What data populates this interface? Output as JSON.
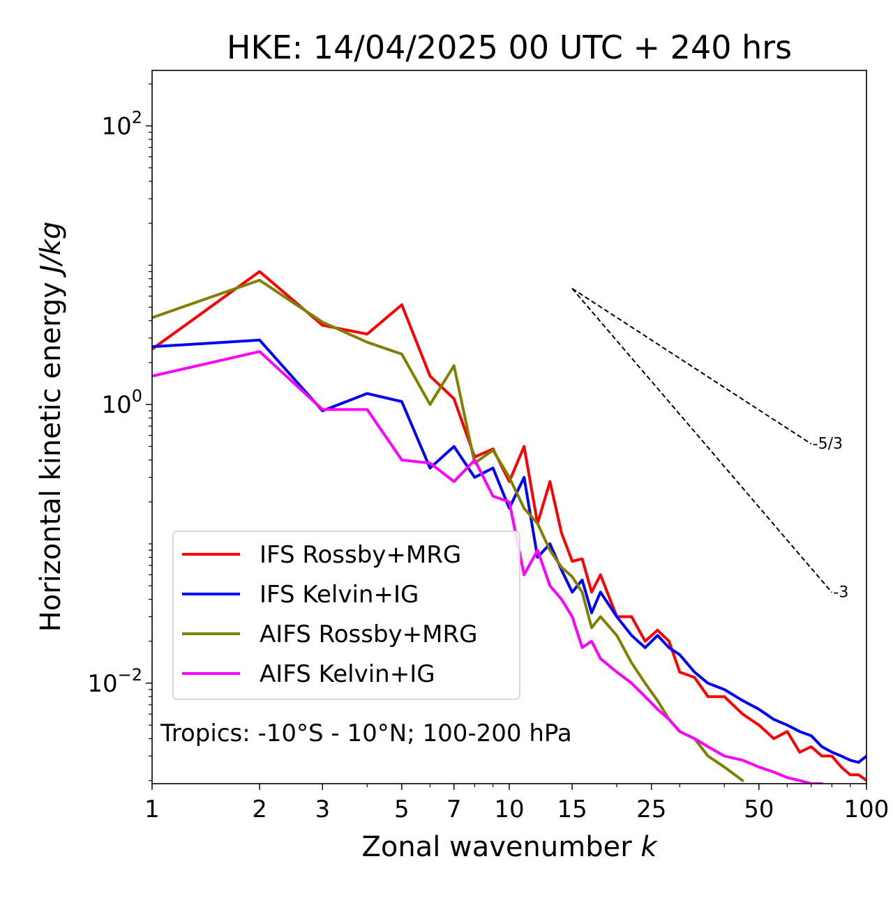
{
  "chart_data": {
    "type": "line",
    "title": "HKE: 14/04/2025 00 UTC + 240 hrs",
    "xlabel": "Zonal wavenumber k",
    "ylabel": "Horizontal kinetic energy J/kg",
    "xscale": "log",
    "yscale": "log",
    "xlim": [
      1,
      100
    ],
    "ylim": [
      0.0019,
      250
    ],
    "x_ticks": [
      1,
      2,
      3,
      5,
      7,
      10,
      15,
      25,
      50,
      100
    ],
    "x_tick_labels": [
      "1",
      "2",
      "3",
      "5",
      "7",
      "10",
      "15",
      "25",
      "50",
      "100"
    ],
    "y_ticks": [
      0.01,
      1,
      100
    ],
    "y_tick_labels": [
      {
        "base": "10",
        "exp": "−2"
      },
      {
        "base": "10",
        "exp": "0"
      },
      {
        "base": "10",
        "exp": "2"
      }
    ],
    "legend_position": "lower-left",
    "annotation": "Tropics: -10°S - 10°N; 100-200 hPa",
    "reference_lines": [
      {
        "label": "-5/3",
        "slope": -1.6667,
        "x": [
          15,
          70
        ],
        "y0": 6.8
      },
      {
        "label": "-3",
        "slope": -3,
        "x": [
          15,
          80
        ],
        "y0": 6.8
      }
    ],
    "series": [
      {
        "name": "IFS Rossby+MRG",
        "color": "#ff0000",
        "x": [
          1,
          2,
          3,
          4,
          5,
          6,
          7,
          8,
          9,
          10,
          11,
          12,
          13,
          14,
          15,
          16,
          17,
          18,
          20,
          22,
          24,
          26,
          28,
          30,
          33,
          36,
          40,
          45,
          50,
          55,
          60,
          65,
          70,
          75,
          80,
          85,
          90,
          95,
          100
        ],
        "y": [
          2.5,
          9.0,
          3.7,
          3.2,
          5.2,
          1.6,
          1.1,
          0.42,
          0.48,
          0.28,
          0.5,
          0.14,
          0.28,
          0.12,
          0.075,
          0.078,
          0.045,
          0.06,
          0.03,
          0.03,
          0.02,
          0.024,
          0.02,
          0.012,
          0.011,
          0.008,
          0.008,
          0.006,
          0.005,
          0.004,
          0.0045,
          0.0032,
          0.0035,
          0.003,
          0.003,
          0.0025,
          0.0022,
          0.0022,
          0.002
        ]
      },
      {
        "name": "IFS Kelvin+IG",
        "color": "#0000ff",
        "x": [
          1,
          2,
          3,
          4,
          5,
          6,
          7,
          8,
          9,
          10,
          11,
          12,
          13,
          14,
          15,
          16,
          17,
          18,
          20,
          22,
          24,
          26,
          28,
          30,
          33,
          36,
          40,
          45,
          50,
          55,
          60,
          65,
          70,
          75,
          80,
          85,
          90,
          95,
          100
        ],
        "y": [
          2.6,
          2.9,
          0.9,
          1.2,
          1.05,
          0.35,
          0.5,
          0.3,
          0.35,
          0.18,
          0.3,
          0.08,
          0.1,
          0.065,
          0.045,
          0.055,
          0.032,
          0.045,
          0.03,
          0.022,
          0.018,
          0.022,
          0.018,
          0.016,
          0.012,
          0.01,
          0.009,
          0.0075,
          0.0065,
          0.0055,
          0.005,
          0.0045,
          0.0042,
          0.0035,
          0.0032,
          0.003,
          0.0028,
          0.0027,
          0.003
        ]
      },
      {
        "name": "AIFS Rossby+MRG",
        "color": "#808000",
        "x": [
          1,
          2,
          3,
          4,
          5,
          6,
          7,
          8,
          9,
          10,
          11,
          12,
          13,
          14,
          15,
          16,
          17,
          18,
          20,
          22,
          24,
          26,
          28,
          30,
          33,
          36,
          40,
          45
        ],
        "y": [
          4.2,
          7.8,
          3.9,
          2.8,
          2.3,
          1.0,
          1.9,
          0.38,
          0.47,
          0.3,
          0.18,
          0.14,
          0.09,
          0.068,
          0.058,
          0.045,
          0.025,
          0.03,
          0.022,
          0.014,
          0.01,
          0.0075,
          0.0055,
          0.0045,
          0.004,
          0.003,
          0.0025,
          0.002
        ]
      },
      {
        "name": "AIFS Kelvin+IG",
        "color": "#ff00ff",
        "x": [
          1,
          2,
          3,
          4,
          5,
          6,
          7,
          8,
          9,
          10,
          11,
          12,
          13,
          14,
          15,
          16,
          17,
          18,
          20,
          22,
          24,
          26,
          28,
          30,
          33,
          36,
          40,
          45,
          50,
          55,
          60,
          65,
          70,
          75
        ],
        "y": [
          1.6,
          2.4,
          0.92,
          0.92,
          0.4,
          0.38,
          0.28,
          0.4,
          0.22,
          0.2,
          0.06,
          0.09,
          0.05,
          0.04,
          0.03,
          0.018,
          0.02,
          0.015,
          0.012,
          0.01,
          0.008,
          0.0065,
          0.0055,
          0.0045,
          0.004,
          0.0035,
          0.003,
          0.0028,
          0.0025,
          0.0023,
          0.0021,
          0.002,
          0.0019,
          0.0019
        ]
      }
    ]
  }
}
